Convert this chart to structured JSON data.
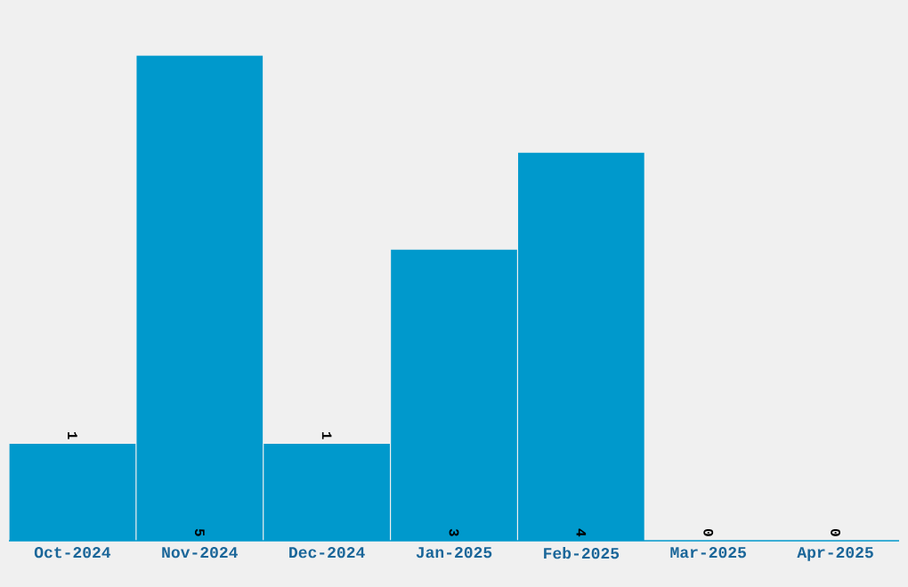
{
  "chart_data": {
    "type": "bar",
    "categories": [
      "Oct-2024",
      "Nov-2024",
      "Dec-2024",
      "Jan-2025",
      "Feb-2025",
      "Mar-2025",
      "Apr-2025"
    ],
    "values": [
      1,
      5,
      1,
      3,
      4,
      0,
      0
    ],
    "color": "#0099cc",
    "tick_labels": "x",
    "data_labels": true
  }
}
